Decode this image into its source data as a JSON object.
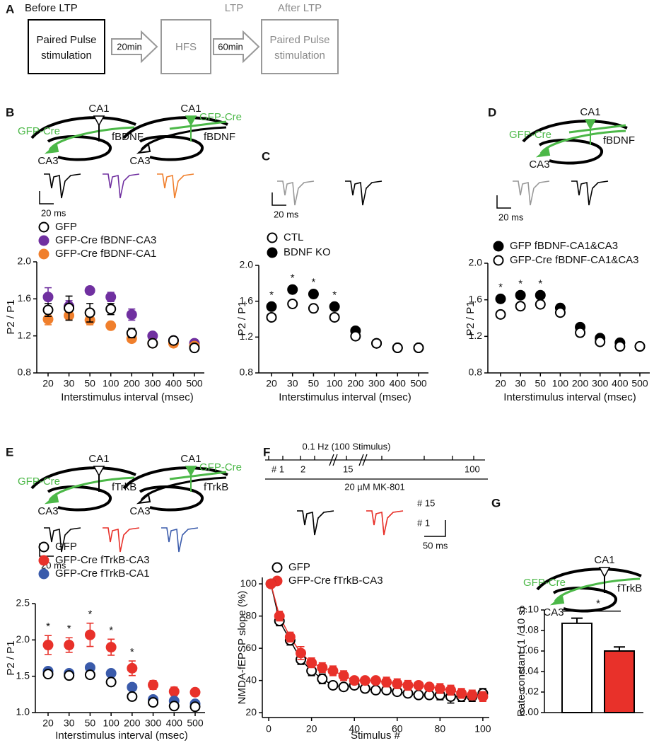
{
  "figure": {
    "panel_a": {
      "letter": "A",
      "before": "Before LTP",
      "box1": [
        "Paired Pulse",
        "stimulation"
      ],
      "arrow1": "20min",
      "box2": "HFS",
      "ltp": "LTP",
      "arrow2": "60min",
      "after": "After LTP",
      "box3": [
        "Paired Pulse",
        "stimulation"
      ]
    },
    "schematics": [
      {
        "ca1": "CA1",
        "cre": "GFP-Cre",
        "target": "fBDNF",
        "ca3": "CA3"
      },
      {
        "ca1": "CA1",
        "cre": "GFP-Cre",
        "target": "fBDNF",
        "ca3": "CA3"
      },
      {
        "ca1": "CA1",
        "cre": "GFP-Cre",
        "target": "fBDNF",
        "ca3": "CA3"
      },
      {
        "ca1": "CA1",
        "cre": "GFP-Cre",
        "target": "fTrkB",
        "ca3": "CA3"
      },
      {
        "ca1": "CA1",
        "cre": "GFP-Cre",
        "target": "fTrkB",
        "ca3": "CA3"
      },
      {
        "ca1": "CA1",
        "cre": "GFP-Cre",
        "target": "fTrkB",
        "ca3": "CA3"
      }
    ],
    "scale_bars": [
      "20 ms",
      "20 ms",
      "20 ms",
      "20 ms",
      "50 ms"
    ],
    "timeline": {
      "rate": "0.1 Hz (100 Stimulus)",
      "marks": [
        "# 1",
        "2",
        "15",
        "100"
      ],
      "drug": "20 µM  MK-801",
      "trace_labels": [
        "# 15",
        "# 1"
      ]
    }
  },
  "chart_data": [
    {
      "panel": "B",
      "type": "scatter",
      "categories": [
        "20",
        "30",
        "50",
        "100",
        "200",
        "300",
        "400",
        "500"
      ],
      "xlabel": "Interstimulus interval (msec)",
      "ylabel": "P2 / P1",
      "ylim": [
        0.8,
        2.0
      ],
      "yticks": [
        0.8,
        1.2,
        1.6,
        {
          "value": 2,
          "label": "2.0"
        }
      ],
      "series": [
        {
          "name": "GFP",
          "color": "#000000",
          "marker": "open",
          "values": [
            1.48,
            1.5,
            1.45,
            1.49,
            1.23,
            1.12,
            1.15,
            1.07
          ],
          "errors": [
            0.07,
            0.13,
            0.1,
            0.06,
            0.05,
            0.02,
            0.02,
            0.02
          ]
        },
        {
          "name": "GFP-Cre fBDNF-CA3",
          "color": "#7030a0",
          "marker": "filled",
          "values": [
            1.62,
            1.52,
            1.69,
            1.62,
            1.43,
            1.2,
            1.15,
            1.12
          ],
          "errors": [
            0.1,
            0.06,
            0.04,
            0.05,
            0.06,
            0.02,
            0.02,
            0.04
          ]
        },
        {
          "name": "GFP-Cre fBDNF-CA1",
          "color": "#f07f2c",
          "marker": "filled",
          "values": [
            1.38,
            1.42,
            1.37,
            1.31,
            1.17,
            1.12,
            1.12,
            1.09
          ],
          "errors": [
            0.06,
            0.05,
            0.05,
            0.03,
            0.03,
            0.02,
            0.02,
            0.02
          ]
        }
      ]
    },
    {
      "panel": "C",
      "type": "scatter",
      "categories": [
        "20",
        "30",
        "50",
        "100",
        "200",
        "300",
        "400",
        "500"
      ],
      "xlabel": "Interstimulus interval (msec)",
      "ylabel": "P2 / P1",
      "ylim": [
        0.8,
        2.0
      ],
      "yticks": [
        0.8,
        1.2,
        1.6,
        {
          "value": 2,
          "label": "2.0"
        }
      ],
      "significance": [
        "*",
        "*",
        "*",
        "*",
        null,
        null,
        null,
        null
      ],
      "series": [
        {
          "name": "CTL",
          "color": "#000000",
          "marker": "open",
          "values": [
            1.42,
            1.57,
            1.52,
            1.42,
            1.21,
            1.13,
            1.08,
            1.08
          ],
          "errors": [
            0.02,
            0.02,
            0.02,
            0.02,
            0.02,
            0.02,
            0.02,
            0.02
          ]
        },
        {
          "name": "BDNF KO",
          "color": "#000000",
          "marker": "filled",
          "values": [
            1.54,
            1.73,
            1.68,
            1.54,
            1.27,
            1.13,
            1.08,
            1.08
          ],
          "errors": [
            0.03,
            0.03,
            0.03,
            0.03,
            0.02,
            0.02,
            0.02,
            0.02
          ]
        }
      ]
    },
    {
      "panel": "D",
      "type": "scatter",
      "categories": [
        "20",
        "30",
        "50",
        "100",
        "200",
        "300",
        "400",
        "500"
      ],
      "xlabel": "Interstimulus interval (msec)",
      "ylabel": "P2 / P1",
      "ylim": [
        0.8,
        2.0
      ],
      "yticks": [
        0.8,
        1.2,
        1.6,
        {
          "value": 2,
          "label": "2.0"
        }
      ],
      "significance": [
        "*",
        "*",
        "*",
        null,
        null,
        null,
        null,
        null
      ],
      "series": [
        {
          "name": "GFP fBDNF-CA1&CA3",
          "color": "#000000",
          "marker": "filled",
          "values": [
            1.61,
            1.65,
            1.65,
            1.51,
            1.3,
            1.18,
            1.13,
            1.09
          ],
          "errors": [
            0.03,
            0.03,
            0.03,
            0.02,
            0.02,
            0.02,
            0.02,
            0.02
          ]
        },
        {
          "name": "GFP-Cre fBDNF-CA1&CA3",
          "color": "#000000",
          "marker": "open",
          "values": [
            1.44,
            1.53,
            1.55,
            1.46,
            1.24,
            1.14,
            1.09,
            1.09
          ],
          "errors": [
            0.02,
            0.02,
            0.02,
            0.02,
            0.02,
            0.02,
            0.02,
            0.02
          ]
        }
      ]
    },
    {
      "panel": "E",
      "type": "scatter",
      "categories": [
        "20",
        "30",
        "50",
        "100",
        "200",
        "300",
        "400",
        "500"
      ],
      "xlabel": "Interstimulus interval (msec)",
      "ylabel": "P2 / P1",
      "ylim": [
        1.0,
        2.5
      ],
      "yticks": [
        {
          "value": 1,
          "label": "1.0"
        },
        1.5,
        {
          "value": 2,
          "label": "2.0"
        },
        2.5
      ],
      "significance": [
        "*",
        "*",
        "*",
        "*",
        "*",
        null,
        null,
        null
      ],
      "series": [
        {
          "name": "GFP",
          "color": "#000000",
          "marker": "open",
          "values": [
            1.53,
            1.51,
            1.52,
            1.42,
            1.22,
            1.14,
            1.09,
            1.08
          ],
          "errors": [
            0.02,
            0.02,
            0.02,
            0.02,
            0.02,
            0.02,
            0.02,
            0.02
          ]
        },
        {
          "name": "GFP-Cre fTrkB-CA3",
          "color": "#e8312a",
          "marker": "filled",
          "values": [
            1.93,
            1.93,
            2.07,
            1.9,
            1.61,
            1.38,
            1.29,
            1.28
          ],
          "errors": [
            0.13,
            0.1,
            0.16,
            0.11,
            0.1,
            0.06,
            0.06,
            0.05
          ]
        },
        {
          "name": "GFP-Cre fTrkB-CA1",
          "color": "#3a5bab",
          "marker": "filled",
          "values": [
            1.57,
            1.54,
            1.62,
            1.54,
            1.35,
            1.18,
            1.16,
            1.12
          ],
          "errors": [
            0.02,
            0.02,
            0.02,
            0.02,
            0.02,
            0.02,
            0.02,
            0.02
          ]
        }
      ]
    },
    {
      "panel": "F",
      "type": "line",
      "x": [
        1,
        5,
        10,
        15,
        20,
        25,
        30,
        35,
        40,
        45,
        50,
        55,
        60,
        65,
        70,
        75,
        80,
        85,
        90,
        95,
        100
      ],
      "xlabel": "Stimulus #",
      "ylabel": "NMDA-fEPSP slope (%)",
      "xlim": [
        -3,
        103
      ],
      "ylim": [
        17,
        104
      ],
      "xticks": [
        0,
        20,
        40,
        60,
        80,
        100
      ],
      "yticks": [
        20,
        40,
        60,
        80,
        100
      ],
      "series": [
        {
          "name": "GFP",
          "color": "#000000",
          "marker": "open",
          "values": [
            100,
            77,
            65,
            53,
            46,
            41,
            37,
            36,
            37,
            35,
            34,
            34,
            33,
            32,
            31,
            31,
            31,
            30,
            30,
            30,
            32
          ],
          "errors": [
            0,
            3,
            3,
            3,
            3,
            3,
            2,
            2,
            2,
            2,
            2,
            2,
            2,
            2,
            2,
            2,
            3,
            4,
            3,
            3,
            3
          ]
        },
        {
          "name": "GFP-Cre fTrkB-CA3",
          "color": "#e8312a",
          "marker": "filled",
          "values": [
            100,
            80,
            67,
            57,
            51,
            48,
            46,
            43,
            40,
            40,
            40,
            39,
            38,
            37,
            37,
            36,
            35,
            34,
            32,
            31,
            30
          ],
          "errors": [
            0,
            3,
            3,
            4,
            3,
            3,
            3,
            3,
            2,
            2,
            2,
            3,
            3,
            3,
            2,
            2,
            3,
            3,
            3,
            3,
            3
          ]
        }
      ]
    },
    {
      "panel": "G",
      "type": "bar",
      "categories": [
        null,
        null
      ],
      "ylabel": "Rate constant (1 / 10 s)",
      "ylim": [
        0,
        0.1
      ],
      "yticks": [
        {
          "value": 0,
          "label": "0.00"
        },
        0.02,
        0.04,
        0.06,
        0.08,
        {
          "value": 0.1,
          "label": "0.10"
        }
      ],
      "values": [
        0.087,
        0.06
      ],
      "errors": [
        0.005,
        0.004
      ],
      "colors": [
        "#ffffff",
        "#e8312a"
      ],
      "significance": "*"
    }
  ]
}
